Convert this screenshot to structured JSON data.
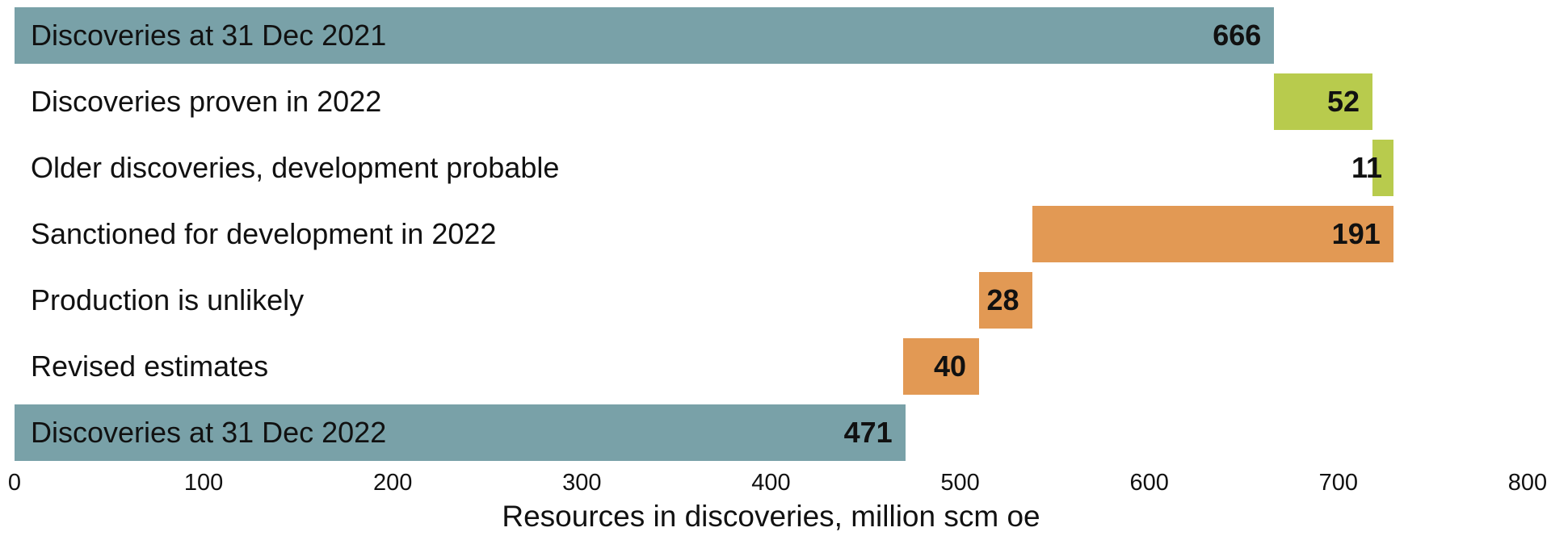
{
  "chart_data": {
    "type": "bar",
    "variant": "horizontal-waterfall",
    "title": "",
    "xlabel": "Resources in discoveries, million scm oe",
    "ylabel": "",
    "grid": "off",
    "legend": "none",
    "x_axis": {
      "min": 0,
      "max": 800,
      "tick_step": 100,
      "ticks": [
        0,
        100,
        200,
        300,
        400,
        500,
        600,
        700,
        800
      ]
    },
    "colors": {
      "total": "#79A1A8",
      "increase": "#B8CB4D",
      "decrease": "#E29954",
      "text": "#111111",
      "background": "#FFFFFF"
    },
    "rows": [
      {
        "label": "Discoveries at 31 Dec 2021",
        "value": 666,
        "start": 0,
        "end": 666,
        "role": "total",
        "label_position": "inside-bar",
        "value_position": "inside-right"
      },
      {
        "label": "Discoveries proven in 2022",
        "value": 52,
        "start": 666,
        "end": 718,
        "role": "increase",
        "label_position": "left",
        "value_position": "inside-right"
      },
      {
        "label": "Older discoveries, development probable",
        "value": 11,
        "start": 718,
        "end": 729,
        "role": "increase",
        "label_position": "left",
        "value_position": "outside-left"
      },
      {
        "label": "Sanctioned for development in 2022",
        "value": 191,
        "start": 538,
        "end": 729,
        "role": "decrease",
        "label_position": "left",
        "value_position": "inside-right"
      },
      {
        "label": "Production is unlikely",
        "value": 28,
        "start": 510,
        "end": 538,
        "role": "decrease",
        "label_position": "left",
        "value_position": "inside-right"
      },
      {
        "label": "Revised estimates",
        "value": 40,
        "start": 470,
        "end": 510,
        "role": "decrease",
        "label_position": "left",
        "value_position": "inside-right"
      },
      {
        "label": "Discoveries at 31 Dec 2022",
        "value": 471,
        "start": 0,
        "end": 471,
        "role": "total",
        "label_position": "inside-bar",
        "value_position": "inside-right"
      }
    ]
  }
}
